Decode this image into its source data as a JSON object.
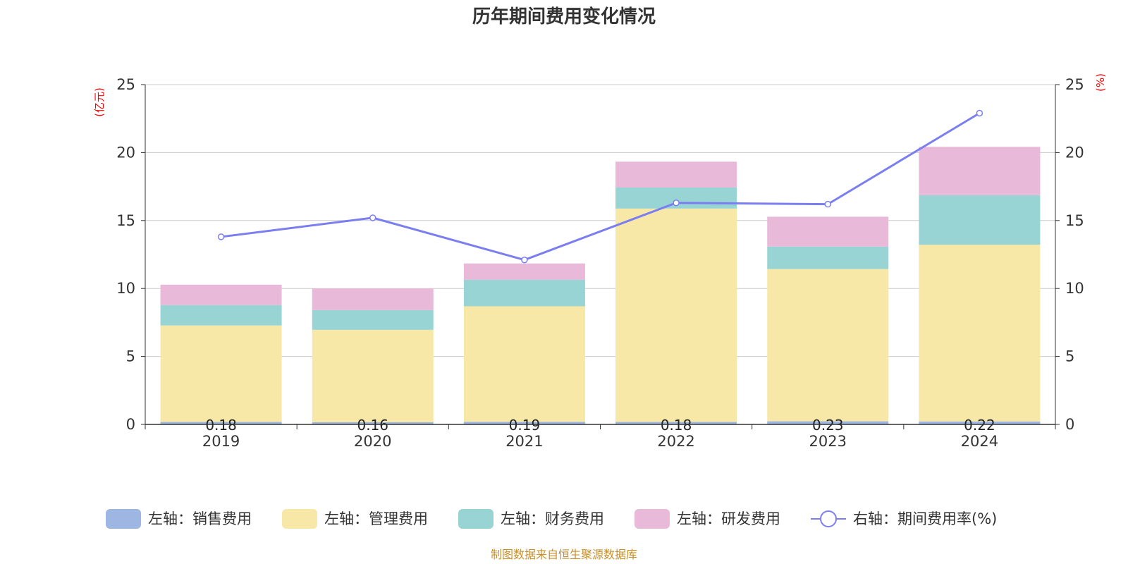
{
  "chart_data": {
    "type": "bar",
    "title": "历年期间费用变化情况",
    "categories": [
      "2019",
      "2020",
      "2021",
      "2022",
      "2023",
      "2024"
    ],
    "left_axis": {
      "unit": "(亿元)",
      "ylim": [
        0,
        25
      ],
      "ticks": [
        "0",
        "5",
        "10",
        "15",
        "20",
        "25"
      ]
    },
    "right_axis": {
      "unit": "(%)",
      "ylim": [
        0,
        25
      ],
      "ticks": [
        "0",
        "5",
        "10",
        "15",
        "20",
        "25"
      ]
    },
    "series": [
      {
        "name": "左轴：销售费用",
        "type": "bar",
        "axis": "left",
        "color": "#9db6e2",
        "values": [
          0.18,
          0.16,
          0.19,
          0.18,
          0.23,
          0.22
        ],
        "labels": [
          "0.18",
          "0.16",
          "0.19",
          "0.18",
          "0.23",
          "0.22"
        ]
      },
      {
        "name": "左轴：管理费用",
        "type": "bar",
        "axis": "left",
        "color": "#f8e8a8",
        "values": [
          7.1,
          6.8,
          8.5,
          15.7,
          11.2,
          13.0
        ]
      },
      {
        "name": "左轴：财务费用",
        "type": "bar",
        "axis": "left",
        "color": "#98d4d4",
        "values": [
          1.5,
          1.45,
          1.95,
          1.55,
          1.65,
          3.65
        ]
      },
      {
        "name": "左轴：研发费用",
        "type": "bar",
        "axis": "left",
        "color": "#e8b9d9",
        "values": [
          1.5,
          1.6,
          1.2,
          1.9,
          2.2,
          3.55
        ]
      },
      {
        "name": "右轴：期间费用率(%)",
        "type": "line",
        "axis": "right",
        "color": "#7b7ef0",
        "values": [
          13.8,
          15.2,
          12.1,
          16.3,
          16.2,
          22.9
        ]
      }
    ],
    "grid": true,
    "legend_position": "bottom"
  },
  "footer": "制图数据来自恒生聚源数据库"
}
